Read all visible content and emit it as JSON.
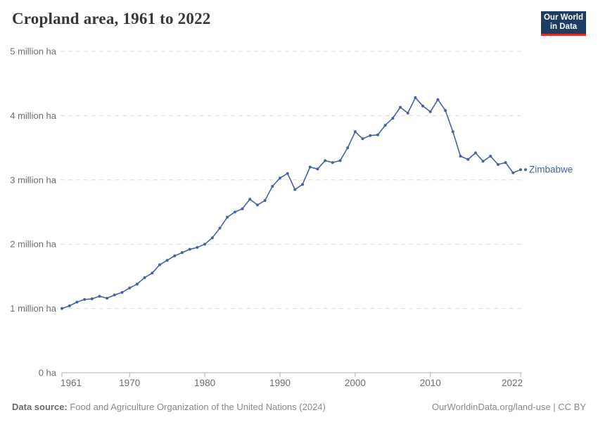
{
  "header": {
    "title": "Cropland area, 1961 to 2022",
    "logo": {
      "line1": "Our World",
      "line2": "in Data"
    }
  },
  "footer": {
    "source_label": "Data source:",
    "source_text": " Food and Agriculture Organization of the United Nations (2024)",
    "link_text": "OurWorldinData.org/land-use | CC BY"
  },
  "colors": {
    "line": "#46639b",
    "entity_label": "#46639b",
    "grid": "#dcdcdc",
    "axis": "#b3b3b3",
    "tick_label": "#6d6d6d",
    "title": "#383838",
    "logo_bg": "#1d3d63",
    "logo_red": "#dc2f24"
  },
  "chart_data": {
    "type": "line",
    "title": "Cropland area, 1961 to 2022",
    "entity": "Zimbabwe",
    "unit": "ha",
    "grid": "horizontal dashed",
    "legend": "end-of-line entity label",
    "ylim_million_ha": [
      0,
      5
    ],
    "yticks": [
      {
        "value": 0,
        "label": "0 ha"
      },
      {
        "value": 1,
        "label": "1 million ha"
      },
      {
        "value": 2,
        "label": "2 million ha"
      },
      {
        "value": 3,
        "label": "3 million ha"
      },
      {
        "value": 4,
        "label": "4 million ha"
      },
      {
        "value": 5,
        "label": "5 million ha"
      }
    ],
    "xticks": [
      1961,
      1970,
      1980,
      1990,
      2000,
      2010,
      2022
    ],
    "x": [
      1961,
      1962,
      1963,
      1964,
      1965,
      1966,
      1967,
      1968,
      1969,
      1970,
      1971,
      1972,
      1973,
      1974,
      1975,
      1976,
      1977,
      1978,
      1979,
      1980,
      1981,
      1982,
      1983,
      1984,
      1985,
      1986,
      1987,
      1988,
      1989,
      1990,
      1991,
      1992,
      1993,
      1994,
      1995,
      1996,
      1997,
      1998,
      1999,
      2000,
      2001,
      2002,
      2003,
      2004,
      2005,
      2006,
      2007,
      2008,
      2009,
      2010,
      2011,
      2012,
      2013,
      2014,
      2015,
      2016,
      2017,
      2018,
      2019,
      2020,
      2021,
      2022
    ],
    "values_million_ha": [
      1.0,
      1.04,
      1.1,
      1.14,
      1.15,
      1.19,
      1.16,
      1.21,
      1.25,
      1.32,
      1.38,
      1.48,
      1.55,
      1.68,
      1.75,
      1.82,
      1.87,
      1.92,
      1.95,
      2.0,
      2.1,
      2.25,
      2.42,
      2.5,
      2.55,
      2.7,
      2.61,
      2.68,
      2.9,
      3.03,
      3.1,
      2.85,
      2.93,
      3.2,
      3.17,
      3.3,
      3.27,
      3.3,
      3.5,
      3.75,
      3.64,
      3.69,
      3.7,
      3.85,
      3.96,
      4.13,
      4.04,
      4.28,
      4.15,
      4.06,
      4.25,
      4.08,
      3.75,
      3.37,
      3.32,
      3.42,
      3.29,
      3.37,
      3.24,
      3.27,
      3.11,
      3.16
    ]
  }
}
